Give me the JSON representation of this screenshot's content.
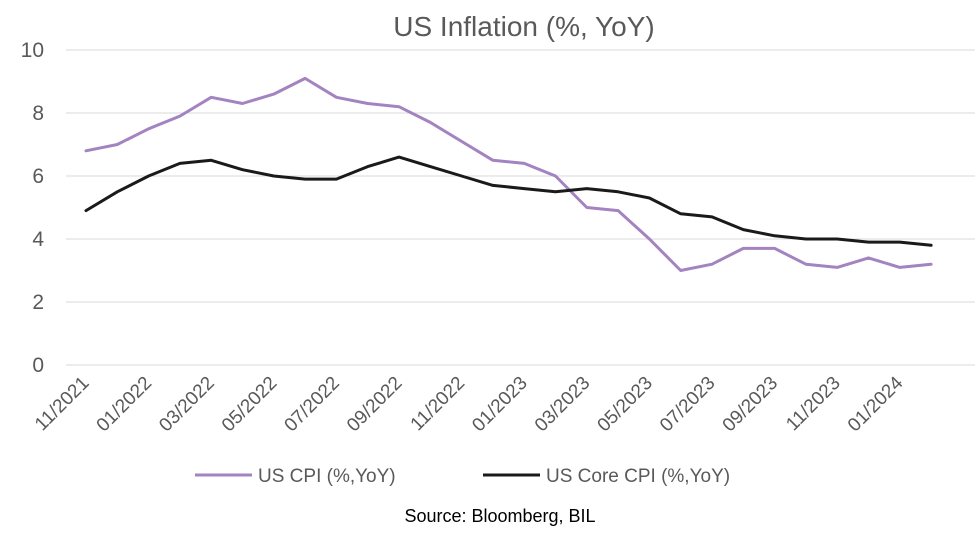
{
  "chart_data": {
    "type": "line",
    "title": "US Inflation (%, YoY)",
    "xlabel": "",
    "ylabel": "",
    "ylim": [
      0,
      10
    ],
    "yticks": [
      0,
      2,
      4,
      6,
      8,
      10
    ],
    "grid": true,
    "legend_position": "bottom",
    "x": [
      "11/2021",
      "12/2021",
      "01/2022",
      "02/2022",
      "03/2022",
      "04/2022",
      "05/2022",
      "06/2022",
      "07/2022",
      "08/2022",
      "09/2022",
      "10/2022",
      "11/2022",
      "12/2022",
      "01/2023",
      "02/2023",
      "03/2023",
      "04/2023",
      "05/2023",
      "06/2023",
      "07/2023",
      "08/2023",
      "09/2023",
      "10/2023",
      "11/2023",
      "12/2023",
      "01/2024",
      "02/2024"
    ],
    "xtick_labels": [
      "11/2021",
      "01/2022",
      "03/2022",
      "05/2022",
      "07/2022",
      "09/2022",
      "11/2022",
      "01/2023",
      "03/2023",
      "05/2023",
      "07/2023",
      "09/2023",
      "11/2023",
      "01/2024"
    ],
    "series": [
      {
        "name": "US CPI (%,YoY)",
        "color": "#a383c0",
        "values": [
          6.8,
          7.0,
          7.5,
          7.9,
          8.5,
          8.3,
          8.6,
          9.1,
          8.5,
          8.3,
          8.2,
          7.7,
          7.1,
          6.5,
          6.4,
          6.0,
          5.0,
          4.9,
          4.0,
          3.0,
          3.2,
          3.7,
          3.7,
          3.2,
          3.1,
          3.4,
          3.1,
          3.2
        ]
      },
      {
        "name": "US Core CPI (%,YoY)",
        "color": "#1a1a1a",
        "values": [
          4.9,
          5.5,
          6.0,
          6.4,
          6.5,
          6.2,
          6.0,
          5.9,
          5.9,
          6.3,
          6.6,
          6.3,
          6.0,
          5.7,
          5.6,
          5.5,
          5.6,
          5.5,
          5.3,
          4.8,
          4.7,
          4.3,
          4.1,
          4.0,
          4.0,
          3.9,
          3.9,
          3.8
        ]
      }
    ],
    "source": "Source: Bloomberg, BIL"
  }
}
